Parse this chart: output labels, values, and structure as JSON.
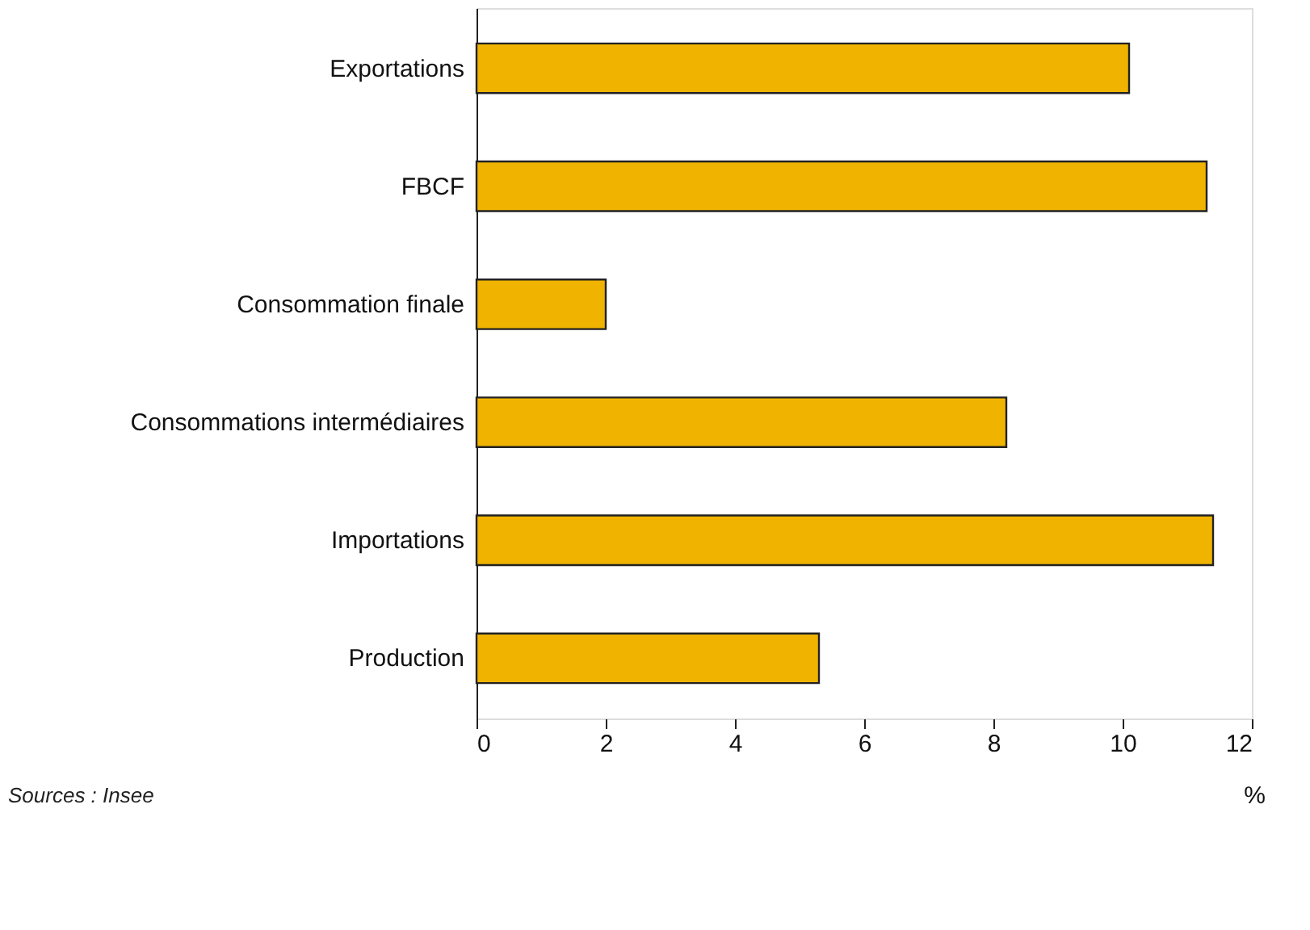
{
  "chart_data": {
    "type": "bar",
    "orientation": "horizontal",
    "categories": [
      "Exportations",
      "FBCF",
      "Consommation finale",
      "Consommations intermédiaires",
      "Importations",
      "Production"
    ],
    "values": [
      10.1,
      11.3,
      2.0,
      8.2,
      11.4,
      5.3
    ],
    "color": "#f0b400",
    "xlim": [
      0,
      12
    ],
    "xticks": [
      0,
      2,
      4,
      6,
      8,
      10,
      12
    ],
    "xlabel": "%",
    "grid": false,
    "annotations": [
      "Sources : Insee"
    ]
  }
}
